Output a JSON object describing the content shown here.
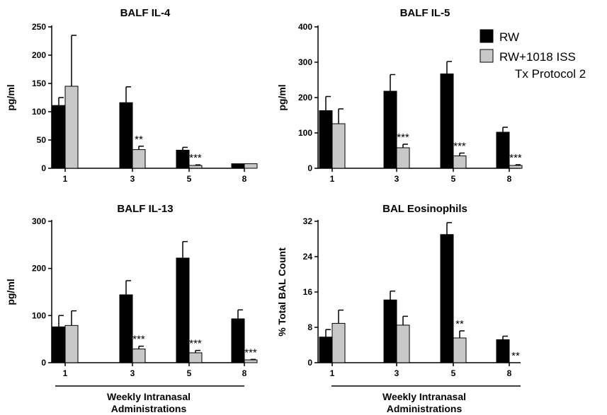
{
  "legend": {
    "items": [
      {
        "label": "RW",
        "color": "#000000"
      },
      {
        "label": "RW+1018 ISS",
        "color": "#c8c8c8"
      }
    ],
    "note": "Tx Protocol 2"
  },
  "x_caption": {
    "line1": "Weekly Intranasal",
    "line2": "Administrations"
  },
  "chart_data": [
    {
      "type": "bar",
      "title": "BALF IL-4",
      "ylabel": "pg/ml",
      "ylim": [
        0,
        250
      ],
      "yticks": [
        "0",
        "50",
        "100",
        "150",
        "200",
        "250"
      ],
      "categories": [
        "1",
        "3",
        "5",
        "8"
      ],
      "series": [
        {
          "name": "RW",
          "values": [
            111,
            116,
            32,
            8
          ],
          "errors": [
            14,
            28,
            5,
            0
          ]
        },
        {
          "name": "RW+1018 ISS",
          "values": [
            145,
            33,
            5,
            8
          ],
          "errors": [
            90,
            6,
            1,
            0
          ]
        }
      ],
      "annotations": [
        "",
        "**",
        "***",
        ""
      ]
    },
    {
      "type": "bar",
      "title": "BALF IL-5",
      "ylabel": "pg/ml",
      "ylim": [
        0,
        400
      ],
      "yticks": [
        "0",
        "100",
        "200",
        "300",
        "400"
      ],
      "categories": [
        "1",
        "3",
        "5",
        "8"
      ],
      "series": [
        {
          "name": "RW",
          "values": [
            163,
            218,
            267,
            102
          ],
          "errors": [
            40,
            47,
            35,
            14
          ]
        },
        {
          "name": "RW+1018 ISS",
          "values": [
            126,
            58,
            35,
            8
          ],
          "errors": [
            42,
            10,
            8,
            2
          ]
        }
      ],
      "annotations": [
        "",
        "***",
        "***",
        "***"
      ]
    },
    {
      "type": "bar",
      "title": "BALF IL-13",
      "ylabel": "pg/ml",
      "ylim": [
        0,
        300
      ],
      "yticks": [
        "0",
        "100",
        "200",
        "300"
      ],
      "categories": [
        "1",
        "3",
        "5",
        "8"
      ],
      "series": [
        {
          "name": "RW",
          "values": [
            76,
            144,
            222,
            93
          ],
          "errors": [
            24,
            30,
            35,
            19
          ]
        },
        {
          "name": "RW+1018 ISS",
          "values": [
            79,
            29,
            21,
            6
          ],
          "errors": [
            31,
            6,
            5,
            1
          ]
        }
      ],
      "annotations": [
        "",
        "***",
        "***",
        "***"
      ]
    },
    {
      "type": "bar",
      "title": "BAL Eosinophils",
      "ylabel": "% Total BAL Count",
      "ylim": [
        0,
        32
      ],
      "yticks": [
        "0",
        "8",
        "16",
        "24",
        "32"
      ],
      "categories": [
        "1",
        "3",
        "5",
        "8"
      ],
      "series": [
        {
          "name": "RW",
          "values": [
            5.8,
            14.2,
            29,
            5.2
          ],
          "errors": [
            1.7,
            2,
            2.7,
            0.8
          ]
        },
        {
          "name": "RW+1018 ISS",
          "values": [
            8.9,
            8.5,
            5.6,
            0
          ],
          "errors": [
            3,
            2,
            1.6,
            0
          ]
        }
      ],
      "annotations": [
        "",
        "",
        "**",
        "**"
      ]
    }
  ]
}
